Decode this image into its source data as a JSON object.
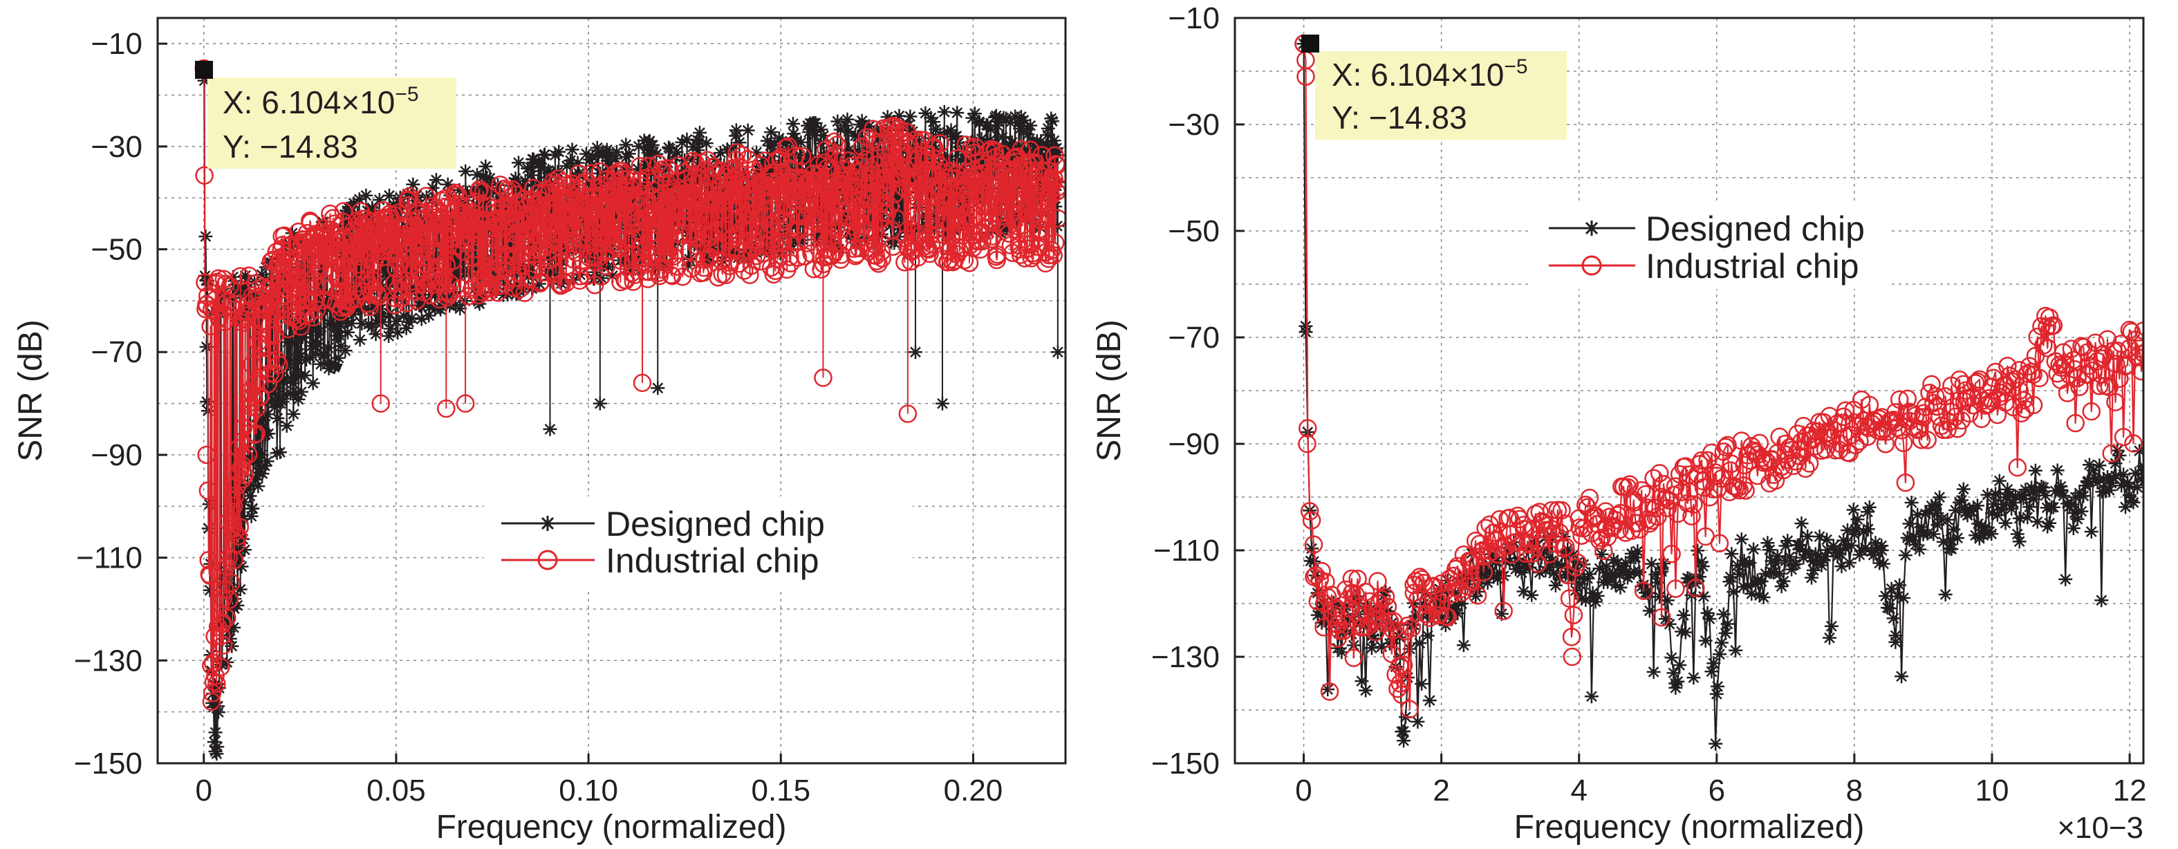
{
  "chart_data": [
    {
      "type": "line",
      "xlabel": "Frequency (normalized)",
      "ylabel": "SNR (dB)",
      "xlim": [
        -0.012,
        0.224
      ],
      "ylim": [
        -150,
        -5
      ],
      "xticks": [
        0,
        0.05,
        0.1,
        0.15,
        0.2
      ],
      "xtick_labels": [
        "0",
        "0.05",
        "0.10",
        "0.15",
        "0.20"
      ],
      "yticks": [
        -10,
        -30,
        -50,
        -70,
        -90,
        -110,
        -130,
        -150
      ],
      "ytick_labels": [
        "−10",
        "−30",
        "−50",
        "−70",
        "−90",
        "−110",
        "−130",
        "−150"
      ],
      "grid": true,
      "legend_position": "center-right",
      "series": [
        {
          "name": "Designed chip",
          "color": "#231f20",
          "marker": "asterisk",
          "points": [
            [
              0,
              -14.83
            ],
            [
              0.0007,
              -69
            ],
            [
              0.002,
              -132
            ],
            [
              0.003,
              -144
            ],
            [
              0.005,
              -122
            ],
            [
              0.008,
              -118
            ],
            [
              0.012,
              -98
            ],
            [
              0.015,
              -90
            ],
            [
              0.02,
              -80
            ],
            [
              0.025,
              -71
            ],
            [
              0.03,
              -66
            ],
            [
              0.04,
              -61
            ],
            [
              0.05,
              -58
            ],
            [
              0.06,
              -54
            ],
            [
              0.07,
              -52
            ],
            [
              0.08,
              -50
            ],
            [
              0.09,
              -48
            ],
            [
              0.1,
              -47
            ],
            [
              0.11,
              -46
            ],
            [
              0.12,
              -45
            ],
            [
              0.13,
              -44
            ],
            [
              0.14,
              -43
            ],
            [
              0.15,
              -42
            ],
            [
              0.16,
              -41
            ],
            [
              0.17,
              -41
            ],
            [
              0.18,
              -40
            ],
            [
              0.19,
              -39
            ],
            [
              0.2,
              -38
            ],
            [
              0.21,
              -38
            ],
            [
              0.222,
              -37
            ]
          ],
          "upper_envelope": [
            [
              0.015,
              -62
            ],
            [
              0.02,
              -56
            ],
            [
              0.03,
              -52
            ],
            [
              0.04,
              -48
            ],
            [
              0.05,
              -45
            ],
            [
              0.07,
              -42
            ],
            [
              0.1,
              -38
            ],
            [
              0.13,
              -35
            ],
            [
              0.16,
              -33
            ],
            [
              0.19,
              -31
            ],
            [
              0.222,
              -32
            ]
          ],
          "outlier_dips": [
            [
              0.09,
              -85
            ],
            [
              0.103,
              -80
            ],
            [
              0.118,
              -77
            ],
            [
              0.185,
              -70
            ],
            [
              0.192,
              -80
            ],
            [
              0.222,
              -70
            ]
          ]
        },
        {
          "name": "Industrial chip",
          "color": "#e0262d",
          "marker": "circle",
          "points": [
            [
              0,
              -14.83
            ],
            [
              0.0007,
              -90
            ],
            [
              0.002,
              -138
            ],
            [
              0.003,
              -133
            ],
            [
              0.005,
              -118
            ],
            [
              0.008,
              -105
            ],
            [
              0.01,
              -92
            ],
            [
              0.015,
              -72
            ],
            [
              0.02,
              -62
            ],
            [
              0.025,
              -57
            ],
            [
              0.03,
              -54
            ],
            [
              0.04,
              -53
            ],
            [
              0.05,
              -52
            ],
            [
              0.06,
              -51
            ],
            [
              0.07,
              -50
            ],
            [
              0.08,
              -50
            ],
            [
              0.09,
              -49
            ],
            [
              0.1,
              -48
            ],
            [
              0.11,
              -48
            ],
            [
              0.12,
              -47
            ],
            [
              0.13,
              -47
            ],
            [
              0.14,
              -46
            ],
            [
              0.15,
              -46
            ],
            [
              0.16,
              -45
            ],
            [
              0.17,
              -45
            ],
            [
              0.18,
              -44
            ],
            [
              0.19,
              -44
            ],
            [
              0.2,
              -44
            ],
            [
              0.21,
              -43
            ],
            [
              0.222,
              -44
            ]
          ],
          "upper_envelope": [
            [
              0.015,
              -63
            ],
            [
              0.02,
              -55
            ],
            [
              0.03,
              -51
            ],
            [
              0.05,
              -48
            ],
            [
              0.08,
              -45
            ],
            [
              0.11,
              -42
            ],
            [
              0.14,
              -39
            ],
            [
              0.17,
              -36
            ],
            [
              0.178,
              -33
            ],
            [
              0.19,
              -37
            ],
            [
              0.222,
              -39
            ]
          ],
          "outlier_dips": [
            [
              0.046,
              -80
            ],
            [
              0.063,
              -81
            ],
            [
              0.068,
              -80
            ],
            [
              0.114,
              -76
            ],
            [
              0.161,
              -75
            ],
            [
              0.183,
              -82
            ]
          ]
        }
      ],
      "annotation": {
        "marker_x": 0,
        "marker_y": -14.83,
        "x_text": "X: 6.104×10",
        "x_exp": "−5",
        "y_text": "Y: −14.83"
      }
    },
    {
      "type": "line",
      "xlabel": "Frequency (normalized)",
      "ylabel": "SNR (dB)",
      "x_multiplier": "×10−3",
      "xlim": [
        -1,
        12.2
      ],
      "ylim": [
        -150,
        -10
      ],
      "xticks": [
        0,
        2,
        4,
        6,
        8,
        10,
        12
      ],
      "xtick_labels": [
        "0",
        "2",
        "4",
        "6",
        "8",
        "10",
        "12"
      ],
      "yticks": [
        -10,
        -30,
        -50,
        -70,
        -90,
        -110,
        -130,
        -150
      ],
      "ytick_labels": [
        "−10",
        "−30",
        "−50",
        "−70",
        "−90",
        "−110",
        "−130",
        "−150"
      ],
      "grid": true,
      "legend_position": "upper-center",
      "series": [
        {
          "name": "Designed chip",
          "color": "#231f20",
          "marker": "asterisk",
          "points": [
            [
              0,
              -14.83
            ],
            [
              0.03,
              -69
            ],
            [
              0.1,
              -112
            ],
            [
              0.2,
              -118
            ],
            [
              0.4,
              -123
            ],
            [
              0.6,
              -125
            ],
            [
              0.8,
              -122
            ],
            [
              1.0,
              -126
            ],
            [
              1.2,
              -122
            ],
            [
              1.4,
              -130
            ],
            [
              1.45,
              -144
            ],
            [
              1.6,
              -124
            ],
            [
              1.8,
              -122
            ],
            [
              2.0,
              -120
            ],
            [
              2.2,
              -118
            ],
            [
              2.4,
              -115
            ],
            [
              2.6,
              -113
            ],
            [
              2.8,
              -112
            ],
            [
              3.0,
              -110
            ],
            [
              3.2,
              -113
            ],
            [
              3.4,
              -111
            ],
            [
              3.6,
              -112
            ],
            [
              3.8,
              -111
            ],
            [
              4.0,
              -115
            ],
            [
              4.2,
              -118
            ],
            [
              4.4,
              -113
            ],
            [
              4.6,
              -117
            ],
            [
              4.8,
              -114
            ],
            [
              5.0,
              -118
            ],
            [
              5.2,
              -114
            ],
            [
              5.4,
              -135
            ],
            [
              5.6,
              -116
            ],
            [
              5.8,
              -113
            ],
            [
              6.0,
              -137
            ],
            [
              6.2,
              -115
            ],
            [
              6.4,
              -112
            ],
            [
              6.6,
              -116
            ],
            [
              6.8,
              -112
            ],
            [
              7.0,
              -112
            ],
            [
              7.2,
              -109
            ],
            [
              7.4,
              -112
            ],
            [
              7.6,
              -108
            ],
            [
              7.8,
              -110
            ],
            [
              8.0,
              -107
            ],
            [
              8.2,
              -106
            ],
            [
              8.4,
              -110
            ],
            [
              8.6,
              -126
            ],
            [
              8.8,
              -105
            ],
            [
              9.0,
              -107
            ],
            [
              9.2,
              -103
            ],
            [
              9.4,
              -108
            ],
            [
              9.6,
              -102
            ],
            [
              9.8,
              -105
            ],
            [
              10.0,
              -103
            ],
            [
              10.2,
              -100
            ],
            [
              10.4,
              -104
            ],
            [
              10.6,
              -99
            ],
            [
              10.8,
              -102
            ],
            [
              11.0,
              -98
            ],
            [
              11.2,
              -103
            ],
            [
              11.4,
              -97
            ],
            [
              11.6,
              -99
            ],
            [
              11.8,
              -96
            ],
            [
              12.0,
              -98
            ],
            [
              12.2,
              -95
            ]
          ]
        },
        {
          "name": "Industrial chip",
          "color": "#e0262d",
          "marker": "circle",
          "points": [
            [
              0,
              -14.83
            ],
            [
              0.03,
              -21
            ],
            [
              0.05,
              -90
            ],
            [
              0.15,
              -115
            ],
            [
              0.3,
              -120
            ],
            [
              0.5,
              -124
            ],
            [
              0.7,
              -118
            ],
            [
              0.9,
              -122
            ],
            [
              1.1,
              -120
            ],
            [
              1.3,
              -125
            ],
            [
              1.4,
              -135
            ],
            [
              1.6,
              -118
            ],
            [
              1.8,
              -122
            ],
            [
              2.0,
              -120
            ],
            [
              2.2,
              -117
            ],
            [
              2.4,
              -112
            ],
            [
              2.6,
              -110
            ],
            [
              2.8,
              -108
            ],
            [
              3.0,
              -107
            ],
            [
              3.2,
              -106
            ],
            [
              3.4,
              -108
            ],
            [
              3.6,
              -106
            ],
            [
              3.8,
              -105
            ],
            [
              3.9,
              -130
            ],
            [
              4.0,
              -104
            ],
            [
              4.2,
              -104
            ],
            [
              4.4,
              -106
            ],
            [
              4.6,
              -103
            ],
            [
              4.8,
              -101
            ],
            [
              5.0,
              -102
            ],
            [
              5.2,
              -100
            ],
            [
              5.4,
              -98
            ],
            [
              5.6,
              -99
            ],
            [
              5.8,
              -97
            ],
            [
              6.0,
              -96
            ],
            [
              6.2,
              -95
            ],
            [
              6.4,
              -94
            ],
            [
              6.6,
              -92
            ],
            [
              6.8,
              -93
            ],
            [
              7.0,
              -90
            ],
            [
              7.2,
              -91
            ],
            [
              7.4,
              -89
            ],
            [
              7.6,
              -88
            ],
            [
              7.8,
              -90
            ],
            [
              8.0,
              -86
            ],
            [
              8.2,
              -87
            ],
            [
              8.4,
              -85
            ],
            [
              8.6,
              -86
            ],
            [
              8.8,
              -84
            ],
            [
              9.0,
              -85
            ],
            [
              9.2,
              -83
            ],
            [
              9.4,
              -84
            ],
            [
              9.6,
              -82
            ],
            [
              9.8,
              -81
            ],
            [
              10.0,
              -82
            ],
            [
              10.2,
              -79
            ],
            [
              10.4,
              -80
            ],
            [
              10.6,
              -77
            ],
            [
              10.8,
              -68
            ],
            [
              11.0,
              -78
            ],
            [
              11.2,
              -76
            ],
            [
              11.4,
              -77
            ],
            [
              11.6,
              -74
            ],
            [
              11.8,
              -75
            ],
            [
              12.0,
              -72
            ],
            [
              12.2,
              -73
            ]
          ]
        }
      ],
      "annotation": {
        "marker_x": 0,
        "marker_y": -14.83,
        "x_text": "X: 6.104×10",
        "x_exp": "−5",
        "y_text": "Y: −14.83"
      }
    }
  ]
}
